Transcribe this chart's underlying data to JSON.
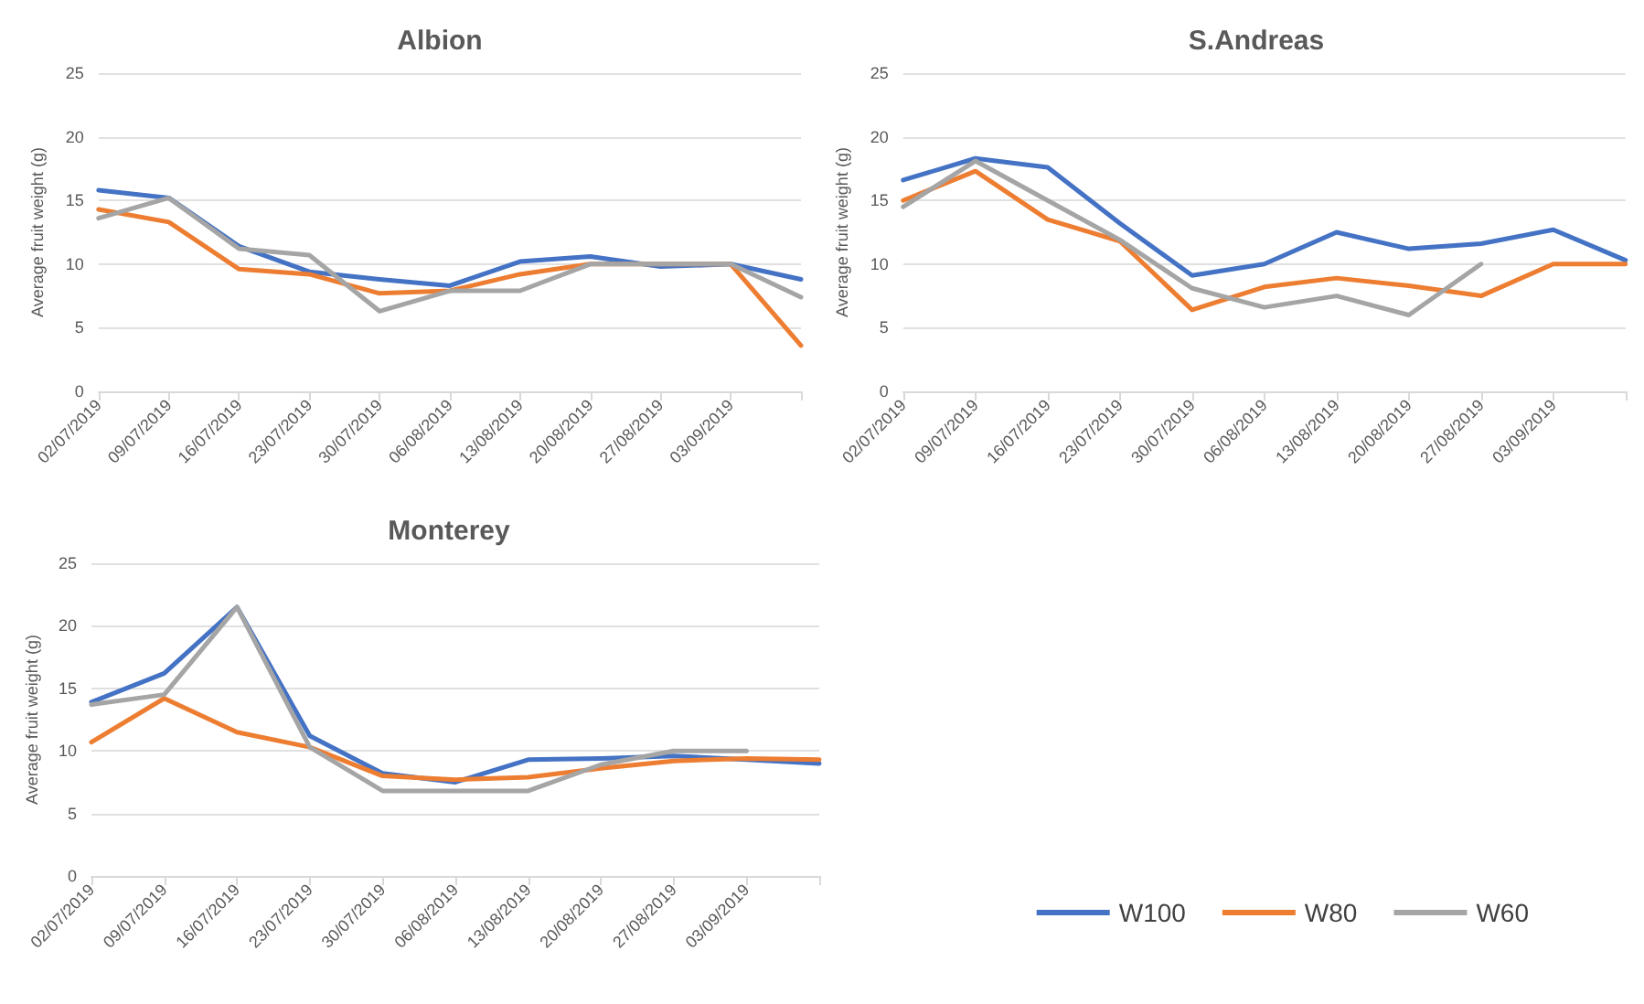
{
  "chart_data": [
    {
      "type": "line",
      "title": "Albion",
      "ylabel": "Average fruit weight (g)",
      "categories": [
        "02/07/2019",
        "09/07/2019",
        "16/07/2019",
        "23/07/2019",
        "30/07/2019",
        "06/08/2019",
        "13/08/2019",
        "20/08/2019",
        "27/08/2019",
        "03/09/2019",
        null
      ],
      "ylim": [
        0,
        25
      ],
      "yticks": [
        0,
        5,
        10,
        15,
        20,
        25
      ],
      "grid": "y",
      "legend": false,
      "marker": "none",
      "line_style": "solid",
      "series": [
        {
          "color": "#4472c4",
          "values": [
            15.8,
            15.2,
            11.4,
            9.4,
            8.8,
            8.3,
            10.2,
            10.6,
            9.8,
            10,
            8.8
          ]
        },
        {
          "color": "#ed7d31",
          "values": [
            14.3,
            13.3,
            9.6,
            9.2,
            7.7,
            7.9,
            9.2,
            10,
            10,
            10,
            3.6
          ]
        },
        {
          "color": "#a5a5a5",
          "values": [
            13.6,
            15.2,
            11.2,
            10.7,
            6.3,
            7.9,
            7.9,
            10,
            10,
            10,
            7.4
          ]
        }
      ]
    },
    {
      "type": "line",
      "title": "S.Andreas",
      "ylabel": "Average fruit weight (g)",
      "categories": [
        "02/07/2019",
        "09/07/2019",
        "16/07/2019",
        "23/07/2019",
        "30/07/2019",
        "06/08/2019",
        "13/08/2019",
        "20/08/2019",
        "27/08/2019",
        "03/09/2019",
        null
      ],
      "ylim": [
        0,
        25
      ],
      "yticks": [
        0,
        5,
        10,
        15,
        20,
        25
      ],
      "grid": "y",
      "legend": false,
      "marker": "none",
      "line_style": "solid",
      "series": [
        {
          "color": "#4472c4",
          "values": [
            16.6,
            18.3,
            17.6,
            13.2,
            9.1,
            10,
            12.5,
            11.2,
            11.6,
            12.7,
            10.3
          ]
        },
        {
          "color": "#ed7d31",
          "values": [
            15,
            17.3,
            13.5,
            11.8,
            6.4,
            8.2,
            8.9,
            8.3,
            7.5,
            10,
            10
          ]
        },
        {
          "color": "#a5a5a5",
          "values": [
            14.5,
            18.1,
            15,
            11.9,
            8.1,
            6.6,
            7.5,
            6,
            10,
            null,
            null
          ]
        }
      ]
    },
    {
      "type": "line",
      "title": "Monterey",
      "ylabel": "Average fruit weight (g)",
      "categories": [
        "02/07/2019",
        "09/07/2019",
        "16/07/2019",
        "23/07/2019",
        "30/07/2019",
        "06/08/2019",
        "13/08/2019",
        "20/08/2019",
        "27/08/2019",
        "03/09/2019",
        null
      ],
      "ylim": [
        0,
        25
      ],
      "yticks": [
        0,
        5,
        10,
        15,
        20,
        25
      ],
      "grid": "y",
      "legend": "bottom right",
      "marker": "none",
      "line_style": "solid",
      "series": [
        {
          "name": "W100",
          "color": "#4472c4",
          "values": [
            13.9,
            16.2,
            21.5,
            11.2,
            8.2,
            7.5,
            9.3,
            9.4,
            9.6,
            9.3,
            9
          ]
        },
        {
          "name": "W80",
          "color": "#ed7d31",
          "values": [
            10.7,
            14.2,
            11.5,
            10.3,
            8,
            7.7,
            7.9,
            8.6,
            9.2,
            9.4,
            9.3
          ]
        },
        {
          "name": "W60",
          "color": "#a5a5a5",
          "values": [
            13.7,
            14.5,
            21.5,
            10.3,
            6.8,
            6.8,
            6.8,
            8.9,
            10,
            10,
            null
          ]
        }
      ]
    }
  ]
}
